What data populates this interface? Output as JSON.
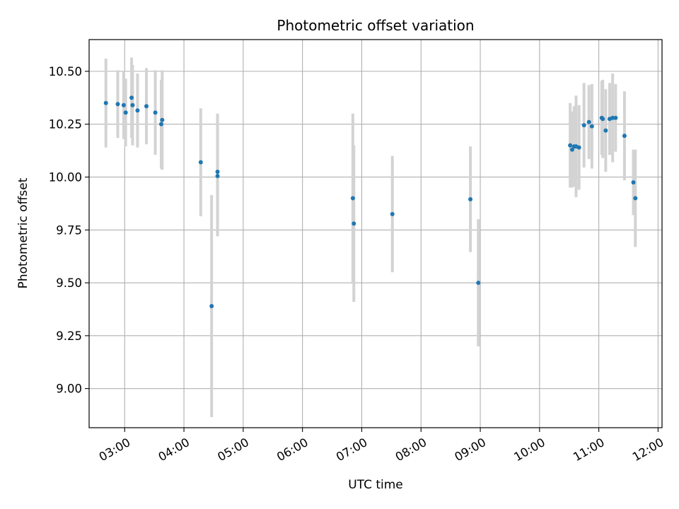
{
  "chart_data": {
    "type": "scatter",
    "title": "Photometric offset variation",
    "xlabel": "UTC time",
    "ylabel": "Photometric offset",
    "xlim": [
      "02:24",
      "12:04"
    ],
    "ylim": [
      8.815,
      10.65
    ],
    "grid": true,
    "x_ticks": [
      "03:00",
      "04:00",
      "05:00",
      "06:00",
      "07:00",
      "08:00",
      "09:00",
      "10:00",
      "11:00",
      "12:00"
    ],
    "y_ticks": [
      "9.00",
      "9.25",
      "9.50",
      "9.75",
      "10.00",
      "10.25",
      "10.50"
    ],
    "colors": {
      "point": "#1f77b4",
      "errorbar": "#d3d3d3",
      "grid": "#b0b0b0"
    },
    "points": [
      {
        "x": "02:41",
        "y": 10.35,
        "err": 0.21
      },
      {
        "x": "02:53",
        "y": 10.345,
        "err": 0.16
      },
      {
        "x": "02:59",
        "y": 10.34,
        "err": 0.16
      },
      {
        "x": "03:01",
        "y": 10.305,
        "err": 0.16
      },
      {
        "x": "03:07",
        "y": 10.375,
        "err": 0.19
      },
      {
        "x": "03:08",
        "y": 10.34,
        "err": 0.19
      },
      {
        "x": "03:13",
        "y": 10.315,
        "err": 0.175
      },
      {
        "x": "03:22",
        "y": 10.335,
        "err": 0.18
      },
      {
        "x": "03:31",
        "y": 10.305,
        "err": 0.2
      },
      {
        "x": "03:37",
        "y": 10.25,
        "err": 0.21
      },
      {
        "x": "03:38",
        "y": 10.27,
        "err": 0.235
      },
      {
        "x": "04:17",
        "y": 10.07,
        "err": 0.255
      },
      {
        "x": "04:28",
        "y": 9.39,
        "err": 0.525
      },
      {
        "x": "04:34",
        "y": 10.025,
        "err": 0.275
      },
      {
        "x": "04:34",
        "y": 10.005,
        "err": 0.285
      },
      {
        "x": "06:51",
        "y": 9.9,
        "err": 0.4
      },
      {
        "x": "06:52",
        "y": 9.78,
        "err": 0.37
      },
      {
        "x": "07:31",
        "y": 9.825,
        "err": 0.275
      },
      {
        "x": "08:50",
        "y": 9.895,
        "err": 0.25
      },
      {
        "x": "08:58",
        "y": 9.5,
        "err": 0.3
      },
      {
        "x": "10:31",
        "y": 10.15,
        "err": 0.2
      },
      {
        "x": "10:33",
        "y": 10.13,
        "err": 0.18
      },
      {
        "x": "10:35",
        "y": 10.145,
        "err": 0.19
      },
      {
        "x": "10:37",
        "y": 10.145,
        "err": 0.24
      },
      {
        "x": "10:40",
        "y": 10.14,
        "err": 0.2
      },
      {
        "x": "10:45",
        "y": 10.245,
        "err": 0.2
      },
      {
        "x": "10:50",
        "y": 10.26,
        "err": 0.175
      },
      {
        "x": "10:53",
        "y": 10.24,
        "err": 0.2
      },
      {
        "x": "11:03",
        "y": 10.28,
        "err": 0.175
      },
      {
        "x": "11:04",
        "y": 10.275,
        "err": 0.185
      },
      {
        "x": "11:07",
        "y": 10.22,
        "err": 0.195
      },
      {
        "x": "11:11",
        "y": 10.275,
        "err": 0.17
      },
      {
        "x": "11:14",
        "y": 10.28,
        "err": 0.21
      },
      {
        "x": "11:17",
        "y": 10.28,
        "err": 0.16
      },
      {
        "x": "11:26",
        "y": 10.195,
        "err": 0.21
      },
      {
        "x": "11:35",
        "y": 9.975,
        "err": 0.155
      },
      {
        "x": "11:37",
        "y": 9.9,
        "err": 0.23
      }
    ]
  }
}
